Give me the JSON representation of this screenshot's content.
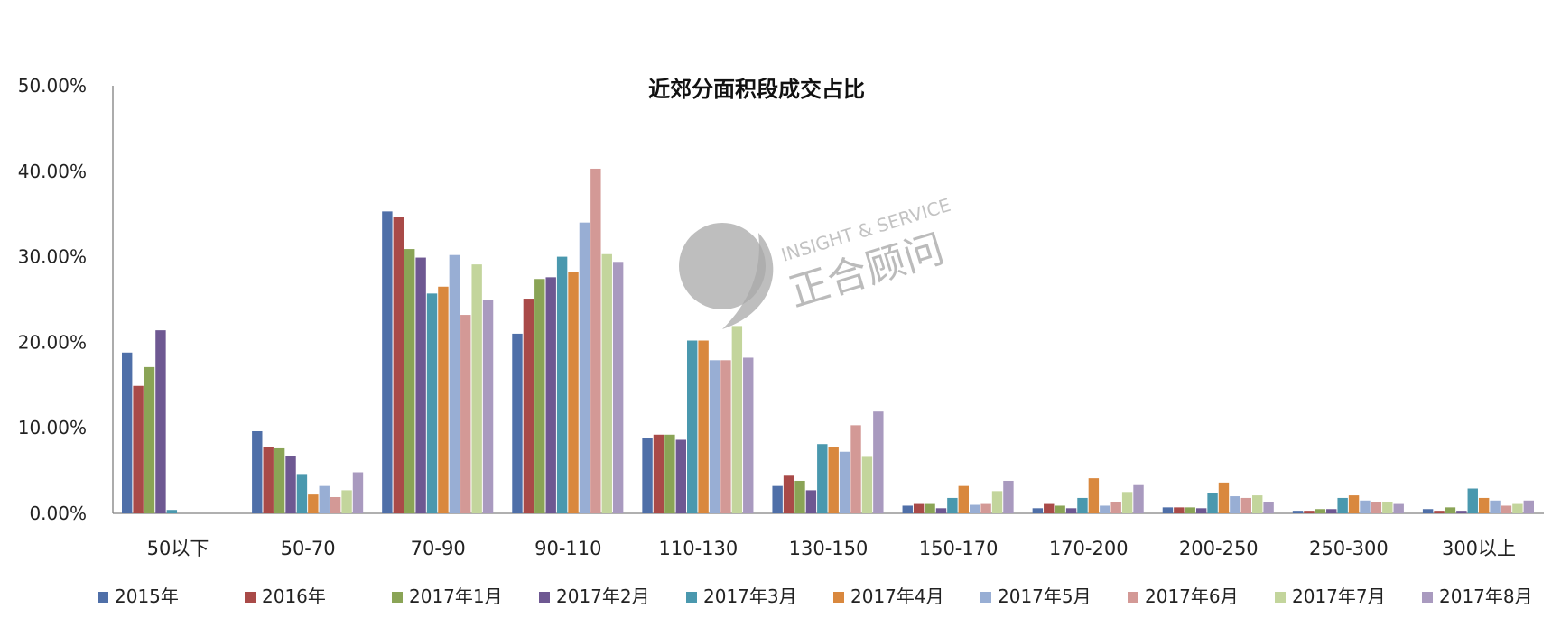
{
  "chart_data": {
    "type": "bar",
    "title": "近郊分面积段成交占比",
    "xlabel": "",
    "ylabel": "",
    "ylim": [
      0,
      50
    ],
    "yticks": [
      "0.00%",
      "10.00%",
      "20.00%",
      "30.00%",
      "40.00%",
      "50.00%"
    ],
    "ytick_values": [
      0,
      10,
      20,
      30,
      40,
      50
    ],
    "grid": false,
    "legend_position": "bottom",
    "categories": [
      "50以下",
      "50-70",
      "70-90",
      "90-110",
      "110-130",
      "130-150",
      "150-170",
      "170-200",
      "200-250",
      "250-300",
      "300以上"
    ],
    "series": [
      {
        "name": "2015年",
        "color": "#4F6FA8",
        "values": [
          18.8,
          9.6,
          35.3,
          21.0,
          8.8,
          3.2,
          0.9,
          0.6,
          0.7,
          0.3,
          0.5
        ]
      },
      {
        "name": "2016年",
        "color": "#A94A48",
        "values": [
          14.9,
          7.8,
          34.7,
          25.1,
          9.2,
          4.4,
          1.1,
          1.1,
          0.7,
          0.3,
          0.3
        ]
      },
      {
        "name": "2017年1月",
        "color": "#8AA456",
        "values": [
          17.1,
          7.6,
          30.9,
          27.4,
          9.2,
          3.8,
          1.1,
          0.9,
          0.7,
          0.5,
          0.7
        ]
      },
      {
        "name": "2017年2月",
        "color": "#6E5892",
        "values": [
          21.4,
          6.7,
          29.9,
          27.6,
          8.6,
          2.7,
          0.6,
          0.6,
          0.6,
          0.5,
          0.3
        ]
      },
      {
        "name": "2017年3月",
        "color": "#4A98AE",
        "values": [
          0.4,
          4.6,
          25.7,
          30.0,
          20.2,
          8.1,
          1.8,
          1.8,
          2.4,
          1.8,
          2.9
        ]
      },
      {
        "name": "2017年4月",
        "color": "#D9883E",
        "values": [
          0,
          2.2,
          26.5,
          28.2,
          20.2,
          7.8,
          3.2,
          4.1,
          3.6,
          2.1,
          1.8
        ]
      },
      {
        "name": "2017年5月",
        "color": "#98AED4",
        "values": [
          0,
          3.2,
          30.2,
          34.0,
          17.9,
          7.2,
          1.0,
          0.9,
          2.0,
          1.5,
          1.5
        ]
      },
      {
        "name": "2017年6月",
        "color": "#D39996",
        "values": [
          0,
          1.9,
          23.2,
          40.3,
          17.9,
          10.3,
          1.1,
          1.3,
          1.8,
          1.3,
          0.9
        ]
      },
      {
        "name": "2017年7月",
        "color": "#C3D59C",
        "values": [
          0,
          2.7,
          29.1,
          30.3,
          21.9,
          6.6,
          2.6,
          2.5,
          2.1,
          1.3,
          1.1
        ]
      },
      {
        "name": "2017年8月",
        "color": "#A99ABF",
        "values": [
          0,
          4.8,
          24.9,
          29.4,
          18.2,
          11.9,
          3.8,
          3.3,
          1.3,
          1.1,
          1.5
        ]
      }
    ]
  },
  "watermark": {
    "brand_en": "INSIGHT & SERVICE",
    "brand_cn": "正合顾问",
    "logo_icon": "nine-shaped-logo-icon"
  }
}
